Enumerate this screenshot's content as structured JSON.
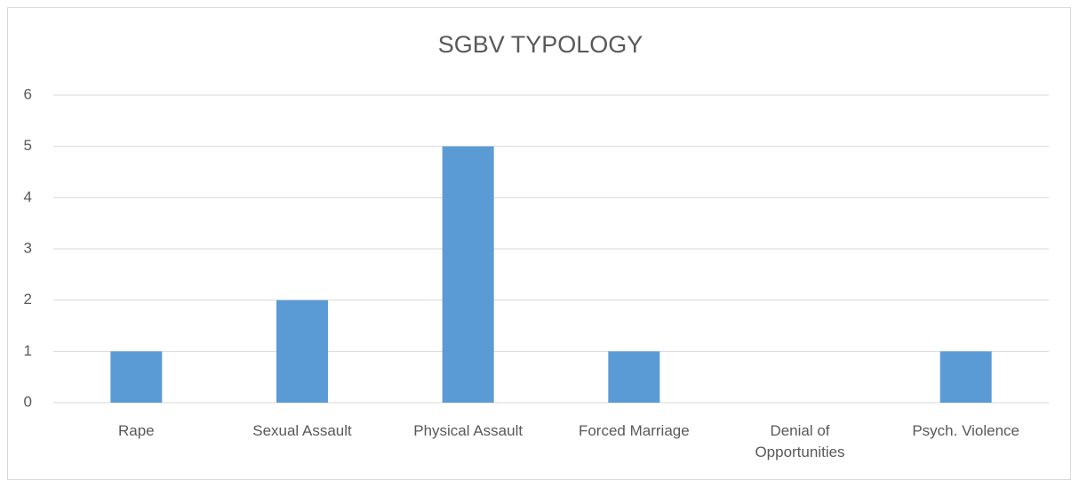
{
  "chart_data": {
    "type": "bar",
    "title": "SGBV TYPOLOGY",
    "categories": [
      "Rape",
      "Sexual Assault",
      "Physical Assault",
      "Forced Marriage",
      "Denial of Opportunities",
      "Psych. Violence"
    ],
    "values": [
      1,
      2,
      5,
      1,
      0,
      1
    ],
    "color": "#5b9bd5",
    "ylim": [
      0,
      6
    ],
    "yticks": [
      0,
      1,
      2,
      3,
      4,
      5,
      6
    ],
    "grid": true
  }
}
